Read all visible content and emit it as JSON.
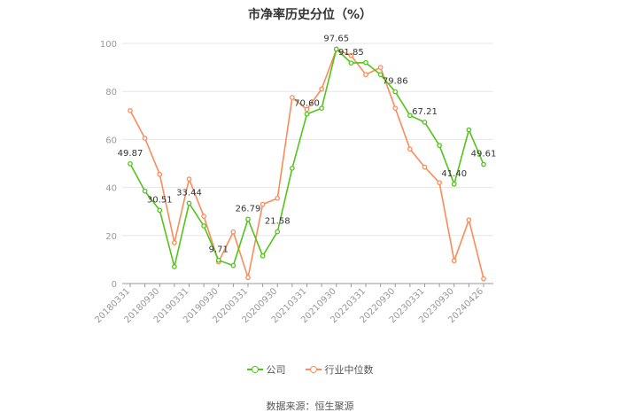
{
  "chart_data": {
    "type": "line",
    "title": "市净率历史分位（%）",
    "x": [
      "20180331",
      "20180630",
      "20180930",
      "20181231",
      "20190331",
      "20190630",
      "20190930",
      "20191231",
      "20200331",
      "20200630",
      "20200930",
      "20201231",
      "20210331",
      "20210630",
      "20210930",
      "20211231",
      "20220331",
      "20220630",
      "20220930",
      "20221231",
      "20230331",
      "20230630",
      "20230930",
      "20231231",
      "20240426"
    ],
    "x_tick_labels": [
      "20180331",
      "20180930",
      "20190331",
      "20190930",
      "20200331",
      "20200930",
      "20210331",
      "20210930",
      "20220331",
      "20220930",
      "20230331",
      "20230930",
      "20240426"
    ],
    "series": [
      {
        "name": "公司",
        "color": "#52c41a",
        "values": [
          49.87,
          38.5,
          30.51,
          7.0,
          33.44,
          24.0,
          9.71,
          7.5,
          26.79,
          11.5,
          21.58,
          48.0,
          70.6,
          73.0,
          97.65,
          91.85,
          92.0,
          87.0,
          79.86,
          70.0,
          67.21,
          57.5,
          41.4,
          64.0,
          49.61
        ]
      },
      {
        "name": "行业中位数",
        "color": "#fa8c5a",
        "values": [
          72.0,
          60.5,
          45.5,
          17.0,
          43.5,
          28.0,
          9.0,
          21.5,
          2.5,
          33.0,
          35.5,
          77.5,
          72.5,
          81.0,
          97.5,
          95.0,
          87.0,
          90.0,
          73.0,
          56.0,
          48.5,
          42.0,
          9.5,
          26.5,
          2.0
        ]
      }
    ],
    "data_labels": [
      {
        "index": 0,
        "text": "49.87"
      },
      {
        "index": 2,
        "text": "30.51"
      },
      {
        "index": 4,
        "text": "33.44"
      },
      {
        "index": 6,
        "text": "9.71"
      },
      {
        "index": 8,
        "text": "26.79"
      },
      {
        "index": 10,
        "text": "21.58"
      },
      {
        "index": 12,
        "text": "70.60"
      },
      {
        "index": 14,
        "text": "97.65"
      },
      {
        "index": 15,
        "text": "91.85"
      },
      {
        "index": 18,
        "text": "79.86"
      },
      {
        "index": 20,
        "text": "67.21"
      },
      {
        "index": 22,
        "text": "41.40"
      },
      {
        "index": 24,
        "text": "49.61"
      }
    ],
    "ylim": [
      0,
      100
    ],
    "yticks": [
      0,
      20,
      40,
      60,
      80,
      100
    ],
    "grid": true,
    "legend_position": "bottom-center"
  },
  "source": "数据来源：恒生聚源"
}
